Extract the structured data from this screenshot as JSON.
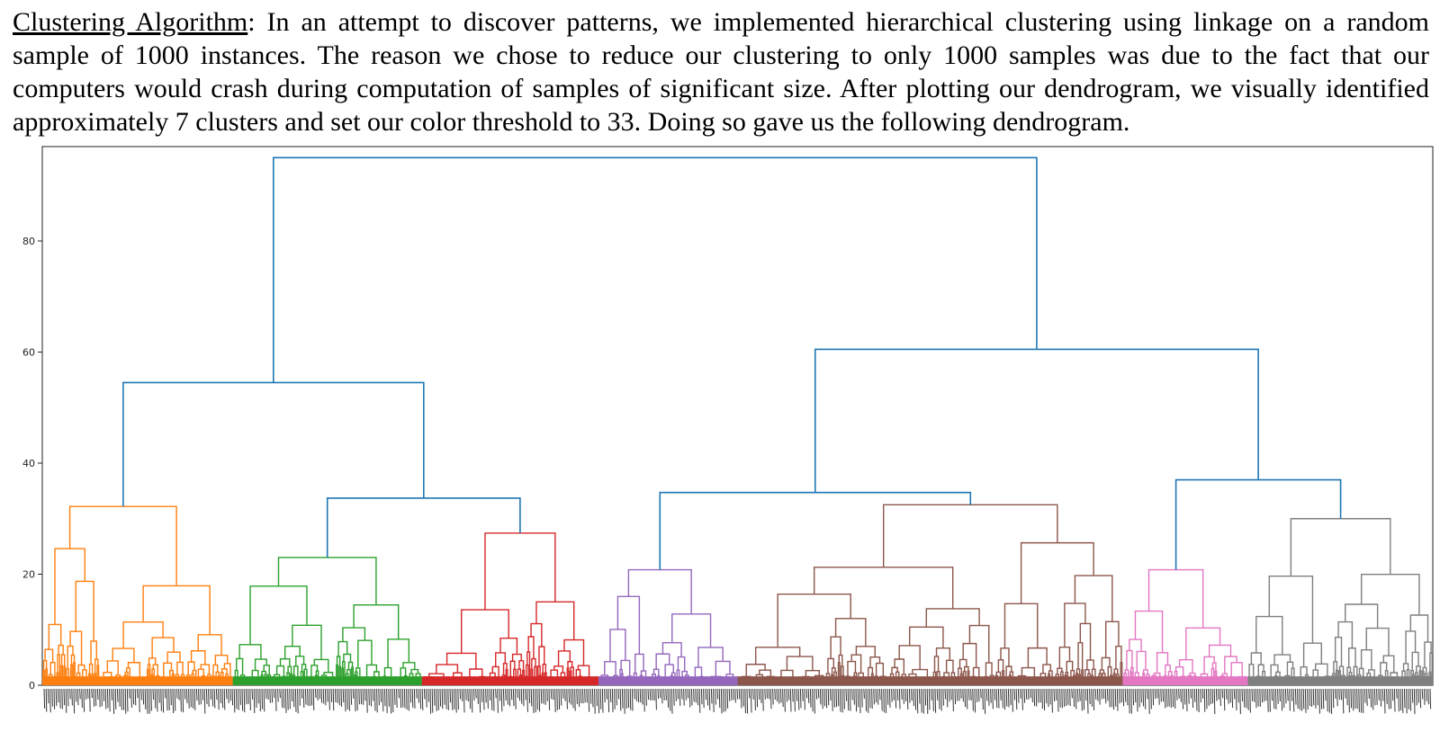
{
  "paragraph": {
    "heading": "Clustering Algorithm",
    "text": ": In an attempt to discover patterns, we implemented hierarchical clustering using linkage on a random sample of 1000 instances. The reason we chose to reduce our clustering to only 1000 samples was due to the fact that our computers would crash during computation of samples of significant size. After plotting our dendrogram, we visually identified approximately 7 clusters and set our color threshold to 33. Doing so gave us the following dendrogram."
  },
  "chart_data": {
    "type": "dendrogram",
    "samples": 1000,
    "color_threshold": 33,
    "ylim": [
      0,
      97
    ],
    "xlim": [
      0,
      1000
    ],
    "y_ticks": [
      0,
      20,
      40,
      60,
      80
    ],
    "x_tick_labels": "dense sample index labels (illegible)",
    "above_threshold_color": "#1f77b4",
    "root_height": 95,
    "top_merges": [
      {
        "name": "root",
        "height": 95,
        "children": [
          "left-group",
          "right-group"
        ]
      },
      {
        "name": "left-group",
        "height": 54.5,
        "children": [
          "cluster-1",
          "green-red-group"
        ]
      },
      {
        "name": "green-red-group",
        "height": 33.7,
        "children": [
          "cluster-2",
          "cluster-3"
        ]
      },
      {
        "name": "right-group",
        "height": 60.5,
        "children": [
          "purple-brown-group",
          "pink-gray-group"
        ]
      },
      {
        "name": "purple-brown-group",
        "height": 34.7,
        "children": [
          "cluster-4",
          "cluster-5"
        ]
      },
      {
        "name": "pink-gray-group",
        "height": 37,
        "children": [
          "cluster-6",
          "cluster-7"
        ]
      }
    ],
    "clusters": [
      {
        "id": 1,
        "color": "#ff7f0e",
        "x_range": [
          0,
          137
        ],
        "top_height": 32.2
      },
      {
        "id": 2,
        "color": "#2ca02c",
        "x_range": [
          137,
          273
        ],
        "top_height": 23
      },
      {
        "id": 3,
        "color": "#d62728",
        "x_range": [
          273,
          400
        ],
        "top_height": 27.4
      },
      {
        "id": 4,
        "color": "#9467bd",
        "x_range": [
          400,
          500
        ],
        "top_height": 20.8
      },
      {
        "id": 5,
        "color": "#8c564b",
        "x_range": [
          500,
          777
        ],
        "top_height": 32.5
      },
      {
        "id": 6,
        "color": "#e377c2",
        "x_range": [
          777,
          867
        ],
        "top_height": 20.8
      },
      {
        "id": 7,
        "color": "#7f7f7f",
        "x_range": [
          867,
          1000
        ],
        "top_height": 30
      }
    ]
  }
}
